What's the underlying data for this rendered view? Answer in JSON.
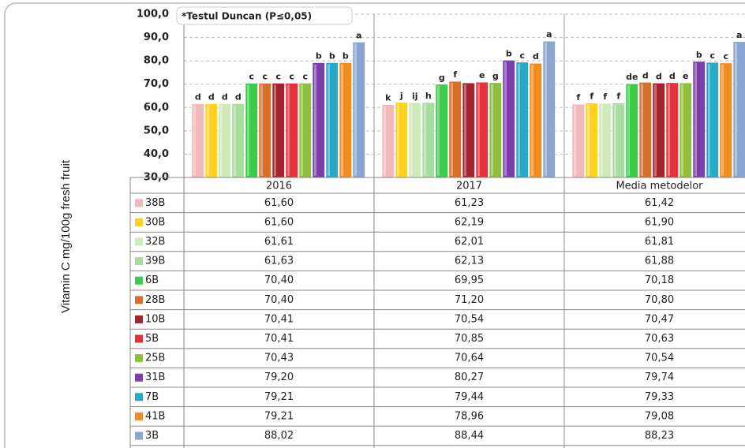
{
  "chart_data": {
    "type": "bar",
    "y_label": "Vitamin C mg/100g fresh fruit",
    "annotation": "*Testul Duncan (P≤0,05)",
    "categories": [
      "2016",
      "2017",
      "Media metodelor"
    ],
    "ylim": [
      30,
      100
    ],
    "yticks": [
      {
        "value": 30,
        "label": "30,0"
      },
      {
        "value": 40,
        "label": "40,0"
      },
      {
        "value": 50,
        "label": "50,0"
      },
      {
        "value": 60,
        "label": "60,0"
      },
      {
        "value": 70,
        "label": "70,0"
      },
      {
        "value": 80,
        "label": "80,0"
      },
      {
        "value": 90,
        "label": "90,0"
      },
      {
        "value": 100,
        "label": "100,0"
      }
    ],
    "grid": true,
    "series": [
      {
        "name": "38B",
        "color": "#f2b8bc",
        "values": [
          61.6,
          61.23,
          61.42
        ],
        "value_labels": [
          "61,60",
          "61,23",
          "61,42"
        ],
        "letters": [
          "d",
          "k",
          "f"
        ]
      },
      {
        "name": "30B",
        "color": "#ffd21f",
        "values": [
          61.6,
          62.19,
          61.9
        ],
        "value_labels": [
          "61,60",
          "62,19",
          "61,90"
        ],
        "letters": [
          "d",
          "j",
          "f"
        ]
      },
      {
        "name": "32B",
        "color": "#cfeab8",
        "values": [
          61.61,
          62.01,
          61.81
        ],
        "value_labels": [
          "61,61",
          "62,01",
          "61,81"
        ],
        "letters": [
          "d",
          "ij",
          "f"
        ]
      },
      {
        "name": "39B",
        "color": "#a9dca0",
        "values": [
          61.63,
          62.13,
          61.88
        ],
        "value_labels": [
          "61,63",
          "62,13",
          "61,88"
        ],
        "letters": [
          "d",
          "h",
          "f"
        ]
      },
      {
        "name": "6B",
        "color": "#3ccc4c",
        "values": [
          70.4,
          69.95,
          70.18
        ],
        "value_labels": [
          "70,40",
          "69,95",
          "70,18"
        ],
        "letters": [
          "c",
          "g",
          "de"
        ]
      },
      {
        "name": "28B",
        "color": "#d8702c",
        "values": [
          70.4,
          71.2,
          70.8
        ],
        "value_labels": [
          "70,40",
          "71,20",
          "70,80"
        ],
        "letters": [
          "c",
          "f",
          "d"
        ]
      },
      {
        "name": "10B",
        "color": "#a2222e",
        "values": [
          70.41,
          70.54,
          70.47
        ],
        "value_labels": [
          "70,41",
          "70,54",
          "70,47"
        ],
        "letters": [
          "c",
          null,
          "d"
        ]
      },
      {
        "name": "5B",
        "color": "#e8303a",
        "values": [
          70.41,
          70.85,
          70.63
        ],
        "value_labels": [
          "70,41",
          "70,85",
          "70,63"
        ],
        "letters": [
          "c",
          "e",
          "d"
        ]
      },
      {
        "name": "25B",
        "color": "#8fbf3f",
        "values": [
          70.43,
          70.64,
          70.54
        ],
        "value_labels": [
          "70,43",
          "70,64",
          "70,54"
        ],
        "letters": [
          "c",
          "g",
          "e"
        ]
      },
      {
        "name": "31B",
        "color": "#7a3fa8",
        "values": [
          79.2,
          80.27,
          79.74
        ],
        "value_labels": [
          "79,20",
          "80,27",
          "79,74"
        ],
        "letters": [
          "b",
          "b",
          "b"
        ]
      },
      {
        "name": "7B",
        "color": "#29a9c9",
        "values": [
          79.21,
          79.44,
          79.33
        ],
        "value_labels": [
          "79,21",
          "79,44",
          "79,33"
        ],
        "letters": [
          "b",
          "c",
          "c"
        ]
      },
      {
        "name": "41B",
        "color": "#f28c1e",
        "values": [
          79.21,
          78.96,
          79.08
        ],
        "value_labels": [
          "79,21",
          "78,96",
          "79,08"
        ],
        "letters": [
          "b",
          "d",
          "c"
        ]
      },
      {
        "name": "3B",
        "color": "#8aa5d0",
        "values": [
          88.02,
          88.44,
          88.23
        ],
        "value_labels": [
          "88,02",
          "88,44",
          "88,23"
        ],
        "letters": [
          "a",
          "a",
          "a"
        ]
      }
    ]
  }
}
